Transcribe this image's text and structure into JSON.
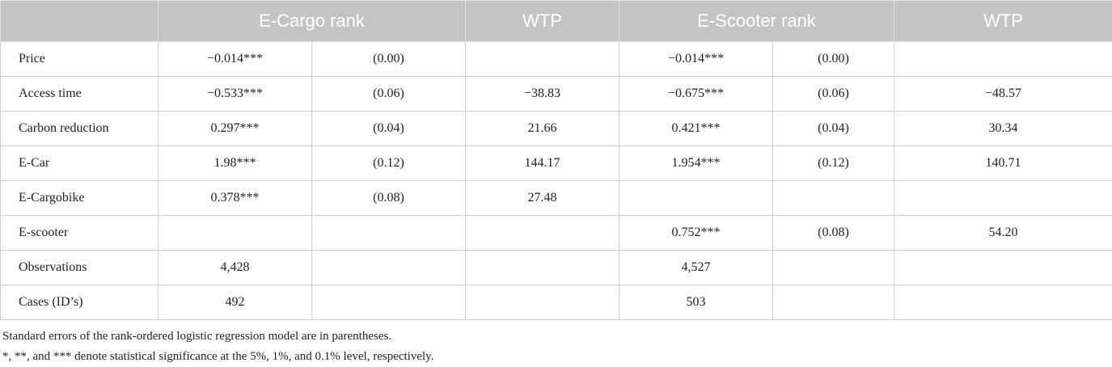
{
  "table": {
    "columns": [
      "E-Cargo rank",
      "WTP",
      "E-Scooter rank",
      "WTP"
    ],
    "rows": [
      [
        "Price",
        "−0.014***",
        "(0.00)",
        null,
        "−0.014***",
        "(0.00)",
        null
      ],
      [
        "Access time",
        "−0.533***",
        "(0.06)",
        "−38.83",
        "−0.675***",
        "(0.06)",
        "−48.57"
      ],
      [
        "Carbon reduction",
        "0.297***",
        "(0.04)",
        "21.66",
        "0.421***",
        "(0.04)",
        "30.34"
      ],
      [
        "E-Car",
        "1.98***",
        "(0.12)",
        "144.17",
        "1.954***",
        "(0.12)",
        "140.71"
      ],
      [
        "E-Cargobike",
        "0.378***",
        "(0.08)",
        "27.48",
        null,
        null,
        null
      ],
      [
        "E-scooter",
        null,
        null,
        null,
        "0.752***",
        "(0.08)",
        "54.20"
      ],
      [
        "Observations",
        "4,428",
        null,
        null,
        "4,527",
        null,
        null
      ],
      [
        "Cases (ID’s)",
        "492",
        null,
        null,
        "503",
        null,
        null
      ]
    ],
    "notes": [
      "Standard errors of the rank-ordered logistic regression model are in parentheses.",
      "*, **, and *** denote statistical significance at the 5%, 1%, and 0.1% level, respectively."
    ]
  }
}
